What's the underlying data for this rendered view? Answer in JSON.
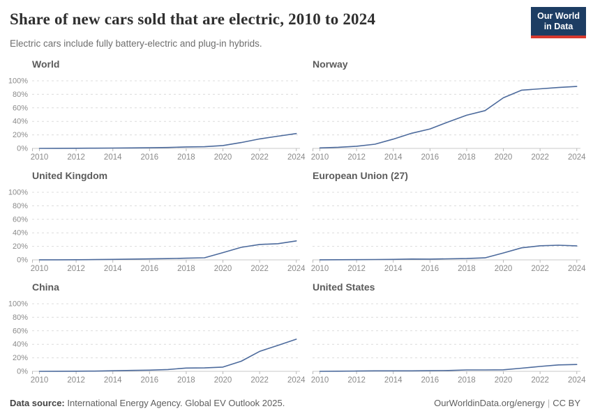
{
  "header": {
    "title": "Share of new cars sold that are electric, 2010 to 2024",
    "subtitle": "Electric cars include fully battery-electric and plug-in hybrids.",
    "logo": {
      "line1": "Our World",
      "line2": "in Data"
    }
  },
  "footer": {
    "source_label": "Data source:",
    "source_text": " International Energy Agency. Global EV Outlook 2025.",
    "link_text": "OurWorldinData.org/energy",
    "separator": "|",
    "license": "CC BY"
  },
  "colors": {
    "line": "#4c6a9c",
    "gridline": "#dcdcdc",
    "axis": "#c8c8c8",
    "tick": "#b8b8b8",
    "tick_label": "#8a8a8a",
    "logo_bg": "#1d3d63",
    "logo_stripe": "#d7382e"
  },
  "chart_data": {
    "type": "line",
    "title": "Share of new cars sold that are electric, 2010 to 2024",
    "xlabel": "",
    "ylabel": "",
    "x": [
      2010,
      2011,
      2012,
      2013,
      2014,
      2015,
      2016,
      2017,
      2018,
      2019,
      2020,
      2021,
      2022,
      2023,
      2024
    ],
    "x_ticks": [
      2010,
      2012,
      2014,
      2016,
      2018,
      2020,
      2022,
      2024
    ],
    "x_tick_labels": [
      "2010",
      "2012",
      "2014",
      "2016",
      "2018",
      "2020",
      "2022",
      "2024"
    ],
    "y_ticks": [
      0,
      20,
      40,
      60,
      80,
      100
    ],
    "y_tick_labels": [
      "0%",
      "20%",
      "40%",
      "60%",
      "80%",
      "100%"
    ],
    "ylim": [
      0,
      100
    ],
    "xlim": [
      2009.6,
      2024.2
    ],
    "grid": "horizontal-dashed",
    "legend": "none",
    "layout": "2 columns x 3 rows small multiples; y-axis labels on left column only",
    "panels": [
      {
        "name": "World",
        "values": [
          0.01,
          0.06,
          0.2,
          0.35,
          0.5,
          0.7,
          0.9,
          1.3,
          2.2,
          2.5,
          4.2,
          8.7,
          14.0,
          18.0,
          22.0
        ]
      },
      {
        "name": "Norway",
        "values": [
          0.7,
          1.6,
          3.2,
          6.2,
          13.7,
          22.4,
          28.8,
          39.2,
          49.1,
          55.9,
          74.8,
          86.2,
          88.1,
          90.1,
          91.6
        ]
      },
      {
        "name": "United Kingdom",
        "values": [
          0.1,
          0.1,
          0.2,
          0.4,
          0.7,
          1.1,
          1.4,
          1.9,
          2.5,
          3.1,
          10.7,
          18.6,
          22.8,
          23.9,
          28.0
        ]
      },
      {
        "name": "European Union (27)",
        "values": [
          0.1,
          0.2,
          0.3,
          0.5,
          0.7,
          1.2,
          1.1,
          1.5,
          2.0,
          3.0,
          10.2,
          17.8,
          20.8,
          21.6,
          20.7
        ]
      },
      {
        "name": "China",
        "values": [
          0.0,
          0.1,
          0.2,
          0.3,
          0.8,
          1.3,
          1.8,
          2.7,
          4.8,
          5.1,
          6.3,
          15.0,
          29.5,
          38.5,
          47.5
        ]
      },
      {
        "name": "United States",
        "values": [
          0.0,
          0.2,
          0.4,
          0.7,
          0.7,
          0.7,
          0.9,
          1.2,
          2.1,
          2.1,
          2.3,
          4.6,
          7.2,
          9.5,
          10.1
        ]
      }
    ]
  }
}
